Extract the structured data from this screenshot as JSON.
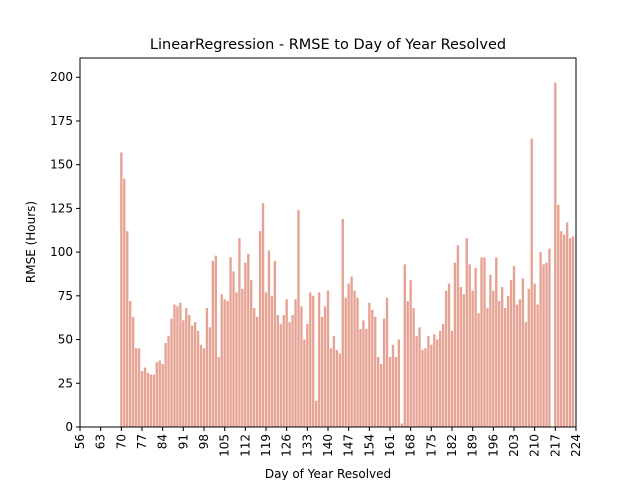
{
  "chart_data": {
    "type": "bar",
    "title": "LinearRegression - RMSE to Day of Year Resolved",
    "xlabel": "Day of Year Resolved",
    "ylabel": "RMSE (Hours)",
    "color": "#e6a394",
    "xlim": [
      56,
      224
    ],
    "ylim": [
      0,
      211
    ],
    "xticks": [
      56,
      63,
      70,
      77,
      84,
      91,
      98,
      105,
      112,
      119,
      126,
      133,
      140,
      147,
      154,
      161,
      168,
      175,
      182,
      189,
      196,
      203,
      210,
      217,
      224
    ],
    "yticks": [
      0,
      25,
      50,
      75,
      100,
      125,
      150,
      175,
      200
    ],
    "x": [
      70,
      71,
      72,
      73,
      74,
      75,
      76,
      77,
      78,
      79,
      80,
      81,
      82,
      83,
      84,
      85,
      86,
      87,
      88,
      89,
      90,
      91,
      92,
      93,
      94,
      95,
      96,
      97,
      98,
      99,
      100,
      101,
      102,
      103,
      104,
      105,
      106,
      107,
      108,
      109,
      110,
      111,
      112,
      113,
      114,
      115,
      116,
      117,
      118,
      119,
      120,
      121,
      122,
      123,
      124,
      125,
      126,
      127,
      128,
      129,
      130,
      131,
      132,
      133,
      134,
      135,
      136,
      137,
      138,
      139,
      140,
      141,
      142,
      143,
      144,
      145,
      146,
      147,
      148,
      149,
      150,
      151,
      152,
      153,
      154,
      155,
      156,
      157,
      158,
      159,
      160,
      161,
      162,
      163,
      164,
      165,
      166,
      167,
      168,
      169,
      170,
      171,
      172,
      173,
      174,
      175,
      176,
      177,
      178,
      179,
      180,
      181,
      182,
      183,
      184,
      185,
      186,
      187,
      188,
      189,
      190,
      191,
      192,
      193,
      194,
      195,
      196,
      197,
      198,
      199,
      200,
      201,
      202,
      203,
      204,
      205,
      206,
      207,
      208,
      209,
      210,
      211,
      212,
      213,
      214,
      215,
      216,
      217,
      218,
      219,
      220,
      221,
      222,
      223
    ],
    "values": [
      157,
      142,
      112,
      72,
      63,
      45,
      45,
      32,
      34,
      31,
      30,
      30,
      37,
      38,
      36,
      48,
      52,
      62,
      70,
      69,
      71,
      61,
      68,
      64,
      58,
      60,
      55,
      47,
      45,
      68,
      57,
      95,
      98,
      40,
      76,
      73,
      72,
      97,
      89,
      77,
      108,
      79,
      94,
      99,
      84,
      68,
      63,
      112,
      128,
      77,
      101,
      75,
      95,
      64,
      59,
      64,
      73,
      60,
      64,
      73,
      124,
      69,
      50,
      59,
      77,
      75,
      15,
      77,
      63,
      69,
      78,
      45,
      52,
      44,
      42,
      119,
      74,
      82,
      86,
      78,
      74,
      56,
      61,
      56,
      71,
      67,
      63,
      40,
      36,
      62,
      74,
      40,
      47,
      40,
      50,
      2,
      93,
      72,
      84,
      68,
      52,
      57,
      44,
      45,
      52,
      47,
      53,
      50,
      55,
      59,
      78,
      82,
      55,
      94,
      104,
      80,
      76,
      108,
      93,
      78,
      91,
      65,
      97,
      97,
      68,
      87,
      78,
      97,
      72,
      80,
      68,
      75,
      84,
      92,
      70,
      73,
      85,
      60,
      79,
      165,
      82,
      70,
      100,
      93,
      94,
      102,
      null,
      197,
      127,
      112,
      110,
      117,
      108,
      109
    ]
  }
}
